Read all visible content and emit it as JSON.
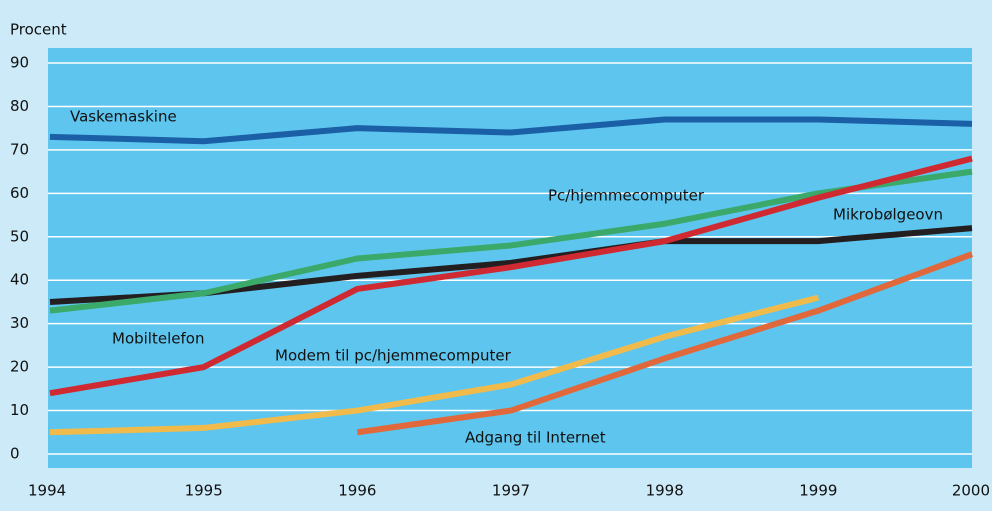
{
  "chart_data": {
    "type": "line",
    "y_label": "Procent",
    "x": [
      1994,
      1995,
      1996,
      1997,
      1998,
      1999,
      2000
    ],
    "xlim": [
      1994,
      2000
    ],
    "xticks": [
      1994,
      1995,
      1996,
      1997,
      1998,
      1999,
      2000
    ],
    "ylim": [
      0,
      90
    ],
    "yticks": [
      0,
      10,
      20,
      30,
      40,
      50,
      60,
      70,
      80,
      90
    ],
    "grid": true,
    "series": [
      {
        "name": "Vaskemaskine",
        "color": "#1b5fa6",
        "values": [
          73,
          72,
          75,
          74,
          77,
          77,
          76
        ]
      },
      {
        "name": "Mikrobølgeovn",
        "color": "#231f20",
        "values": [
          35,
          37,
          41,
          44,
          49,
          49,
          52
        ]
      },
      {
        "name": "Pc/hjemmecomputer",
        "color": "#3ba96a",
        "values": [
          33,
          37,
          45,
          48,
          53,
          60,
          65
        ]
      },
      {
        "name": "Mobiltelefon",
        "color": "#cf2a32",
        "values": [
          14,
          20,
          38,
          43,
          49,
          59,
          68
        ]
      },
      {
        "name": "Modem til pc/hjemmecomputer",
        "color": "#f1bb4c",
        "values": [
          5,
          6,
          10,
          16,
          27,
          36,
          null
        ]
      },
      {
        "name": "Adgang til Internet",
        "color": "#e0683a",
        "values": [
          null,
          null,
          5,
          10,
          22,
          33,
          46
        ]
      }
    ]
  }
}
